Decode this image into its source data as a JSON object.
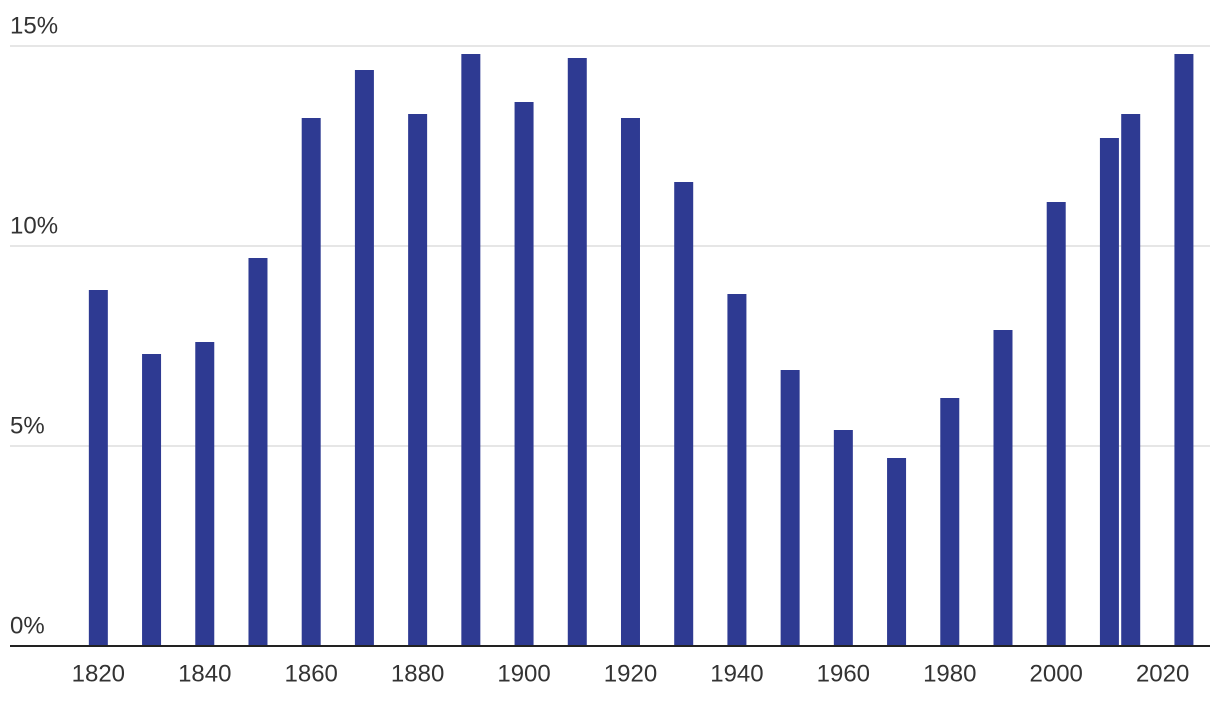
{
  "chart_data": {
    "type": "bar",
    "color": "#2e3a92",
    "x": [
      1820,
      1830,
      1840,
      1850,
      1860,
      1870,
      1880,
      1890,
      1900,
      1910,
      1920,
      1930,
      1940,
      1950,
      1960,
      1970,
      1980,
      1990,
      2000,
      2010,
      2014,
      2024
    ],
    "values": [
      8.9,
      7.3,
      7.6,
      9.7,
      13.2,
      14.4,
      13.3,
      14.8,
      13.6,
      14.7,
      13.2,
      11.6,
      8.8,
      6.9,
      5.4,
      4.7,
      6.2,
      7.9,
      11.1,
      12.7,
      13.3,
      14.8
    ],
    "xlim": [
      1803.4,
      2028.9
    ],
    "xticks": [
      1820,
      1840,
      1860,
      1880,
      1900,
      1920,
      1940,
      1960,
      1980,
      2000,
      2020
    ],
    "ylim": [
      0,
      15
    ],
    "yticks": [
      {
        "value": 0,
        "label": "0%"
      },
      {
        "value": 5,
        "label": "5%"
      },
      {
        "value": 10,
        "label": "10%"
      },
      {
        "value": 15,
        "label": "15%"
      }
    ],
    "grid": true
  }
}
